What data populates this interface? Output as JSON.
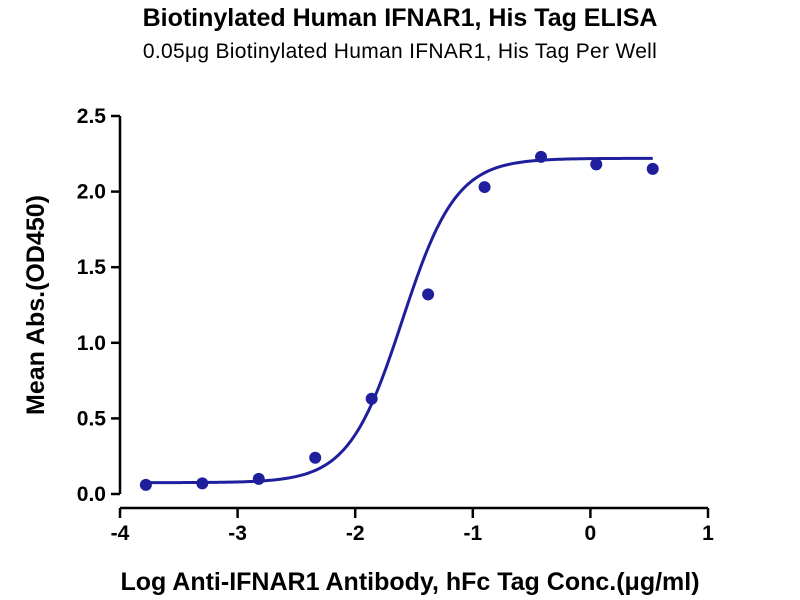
{
  "chart_data": {
    "type": "scatter",
    "title": "Biotinylated Human IFNAR1, His Tag ELISA",
    "subtitle": "0.05μg Biotinylated Human IFNAR1, His Tag Per Well",
    "xlabel": "Log Anti-IFNAR1 Antibody, hFc Tag Conc.(μg/ml)",
    "ylabel": "Mean Abs.(OD450)",
    "xlim": [
      -4,
      1
    ],
    "ylim": [
      0,
      2.5
    ],
    "x_ticks": [
      "-4",
      "-3",
      "-2",
      "-1",
      "0",
      "1"
    ],
    "y_ticks": [
      "0.0",
      "0.5",
      "1.0",
      "1.5",
      "2.0",
      "2.5"
    ],
    "grid": false,
    "series": [
      {
        "x": [
          -3.78,
          -3.3,
          -2.82,
          -2.34,
          -1.86,
          -1.38,
          -0.9,
          -0.42,
          0.05,
          0.53
        ],
        "y": [
          0.06,
          0.07,
          0.1,
          0.24,
          0.63,
          1.32,
          2.03,
          2.23,
          2.18,
          2.15
        ],
        "fit": "four-parameter logistic",
        "fit_params": {
          "bottom": 0.075,
          "top": 2.22,
          "logEC50": -1.6,
          "hill": 1.9
        },
        "fit_x_range": [
          -3.78,
          0.53
        ],
        "color": "#1f1f9e"
      }
    ]
  }
}
